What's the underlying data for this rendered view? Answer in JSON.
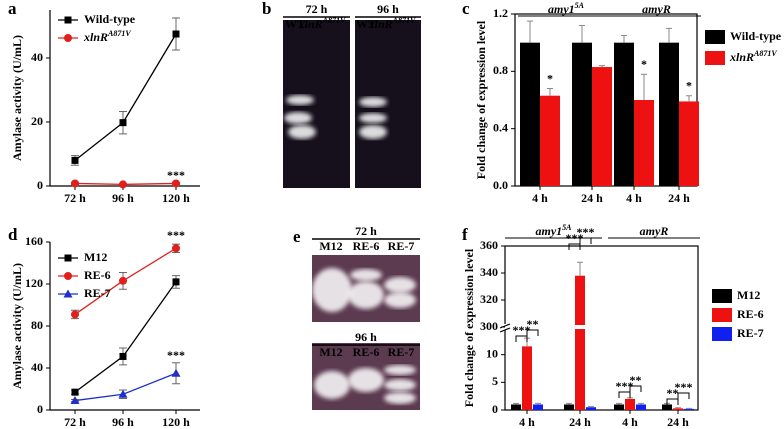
{
  "chart_data": [
    {
      "panel": "a",
      "type": "line",
      "ylabel": "Amylase activity (U/mL)",
      "categories": [
        "72 h",
        "96 h",
        "120 h"
      ],
      "series": [
        {
          "name": "Wild-type",
          "color": "#000000",
          "marker": "square",
          "values": [
            8,
            19.8,
            47.5
          ],
          "errors": [
            1.5,
            3.5,
            5
          ]
        },
        {
          "name": "xlnRA871V",
          "color": "#e0201c",
          "marker": "circle",
          "values": [
            0.8,
            0.5,
            0.8
          ],
          "errors": [
            0.3,
            0.2,
            0.3
          ]
        }
      ],
      "ylim": [
        0,
        55
      ],
      "yticks": [
        0,
        20,
        40
      ],
      "annotations": [
        "***"
      ],
      "legend": "upper left"
    },
    {
      "panel": "c",
      "type": "bar",
      "ylabel": "Fold change of expression level",
      "groups": [
        "amy15A",
        "amyR"
      ],
      "categories": [
        "4 h",
        "24 h",
        "4 h",
        "24 h"
      ],
      "series": [
        {
          "name": "Wild-type",
          "color": "#000000",
          "values": [
            1,
            1,
            1,
            1
          ],
          "errors": [
            0.15,
            0.12,
            0.05,
            0.1
          ]
        },
        {
          "name": "xlnRA871V",
          "color": "#ee1111",
          "values": [
            0.63,
            0.83,
            0.6,
            0.59
          ],
          "errors": [
            0.05,
            0.01,
            0.18,
            0.04
          ]
        }
      ],
      "ylim": [
        0,
        1.2
      ],
      "yticks": [
        {
          "value": 0,
          "label": "0.0"
        },
        0.4,
        0.8,
        1.2
      ],
      "annotations": [
        "*",
        "*",
        "*"
      ],
      "legend": "outside right"
    },
    {
      "panel": "d",
      "type": "line",
      "ylabel": "Amylase activity (U/mL)",
      "categories": [
        "72 h",
        "96 h",
        "120 h"
      ],
      "series": [
        {
          "name": "M12",
          "color": "#000000",
          "marker": "square",
          "values": [
            17,
            51,
            122
          ],
          "errors": [
            2,
            8,
            6
          ]
        },
        {
          "name": "RE-6",
          "color": "#e0201c",
          "marker": "circle",
          "values": [
            91,
            123,
            154
          ],
          "errors": [
            4,
            8,
            4
          ]
        },
        {
          "name": "RE-7",
          "color": "#1f2fc8",
          "marker": "triangle",
          "values": [
            9,
            15,
            35
          ],
          "errors": [
            1,
            4,
            10
          ]
        }
      ],
      "ylim": [
        0,
        160
      ],
      "yticks": [
        0,
        40,
        80,
        120,
        160
      ],
      "annotations": [
        "***",
        "***"
      ],
      "legend": "upper left"
    },
    {
      "panel": "f",
      "type": "bar",
      "ylabel": "Fold change of expression level",
      "groups": [
        "amy15A",
        "amyR"
      ],
      "categories": [
        "4 h",
        "24 h",
        "4 h",
        "24 h"
      ],
      "series": [
        {
          "name": "M12",
          "color": "#000000",
          "values": [
            1,
            1,
            1,
            1
          ],
          "errors": [
            0.2,
            0.2,
            0.2,
            0.2
          ]
        },
        {
          "name": "RE-6",
          "color": "#ee1111",
          "values": [
            11.5,
            338,
            2,
            0.3
          ],
          "errors": [
            1.5,
            10,
            0.2,
            0.1
          ]
        },
        {
          "name": "RE-7",
          "color": "#1020ee",
          "values": [
            1,
            0.5,
            1,
            0.2
          ],
          "errors": [
            0.2,
            0.1,
            0.2,
            0.1
          ]
        }
      ],
      "ylim": [
        0,
        360
      ],
      "ybreak": [
        15,
        300
      ],
      "yticks": [
        0,
        5,
        10,
        300,
        320,
        340,
        360
      ],
      "annotations": [
        "***",
        "**",
        "***",
        "***",
        "***",
        "**",
        "**",
        "***"
      ],
      "legend": "outside right"
    }
  ],
  "gels": [
    {
      "panel": "b",
      "times": [
        "72 h",
        "96 h"
      ],
      "lanes": [
        [
          "WT",
          "xlnRA871V"
        ],
        [
          "WT",
          "xlnRA871V"
        ]
      ]
    },
    {
      "panel": "e",
      "times": [
        "72 h",
        "96 h"
      ],
      "lanes": [
        [
          "M12",
          "RE-6",
          "RE-7"
        ],
        [
          "M12",
          "RE-6",
          "RE-7"
        ]
      ]
    }
  ]
}
